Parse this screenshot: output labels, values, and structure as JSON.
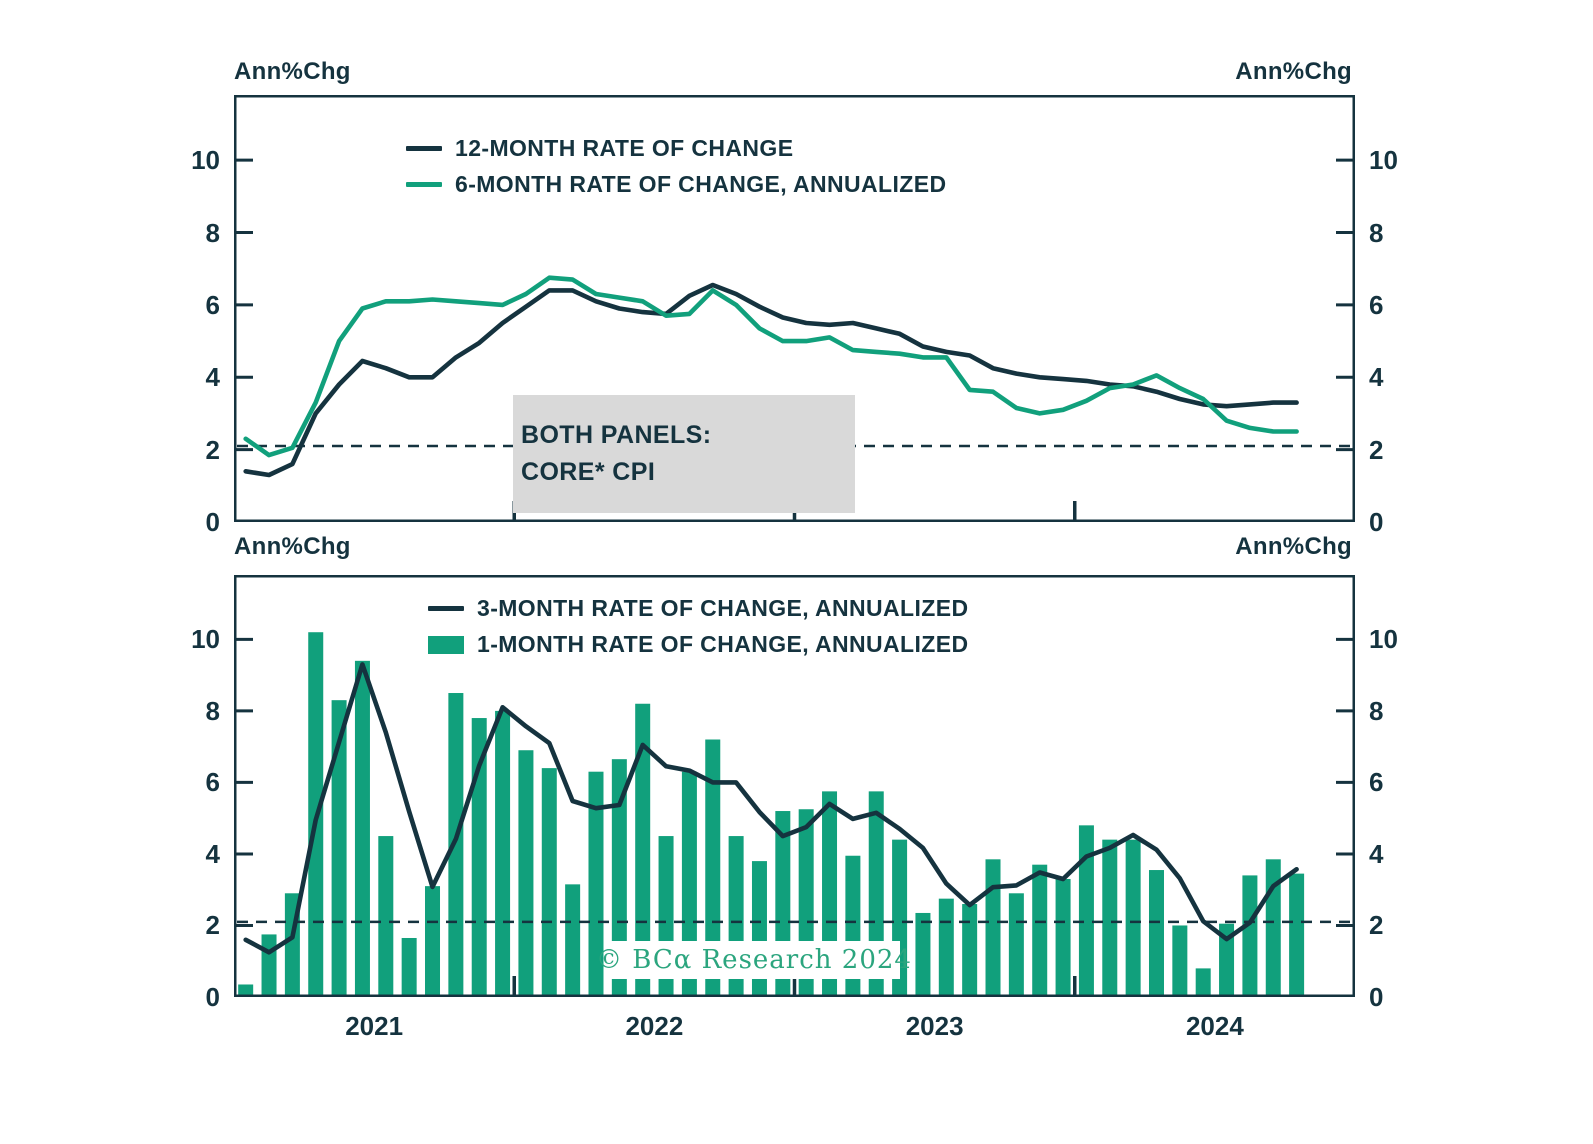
{
  "colors": {
    "axis": "#15333F",
    "dark": "#15333F",
    "green": "#11A07C",
    "gray_box": "#D9D9D9",
    "copyright_green": "#2BA57E",
    "background": "#FFFFFF"
  },
  "top_panel": {
    "ylabel_left": "Ann%Chg",
    "ylabel_right": "Ann%Chg"
  },
  "bottom_panel": {
    "ylabel_left": "Ann%Chg",
    "ylabel_right": "Ann%Chg"
  },
  "annotation_box": {
    "line1": "BOTH PANELS:",
    "line2": "CORE* CPI"
  },
  "copyright": {
    "text": "© BCα Research 2024"
  },
  "chart_data": [
    {
      "type": "line",
      "panel": "top",
      "x": [
        "2021-01",
        "2021-02",
        "2021-03",
        "2021-04",
        "2021-05",
        "2021-06",
        "2021-07",
        "2021-08",
        "2021-09",
        "2021-10",
        "2021-11",
        "2021-12",
        "2022-01",
        "2022-02",
        "2022-03",
        "2022-04",
        "2022-05",
        "2022-06",
        "2022-07",
        "2022-08",
        "2022-09",
        "2022-10",
        "2022-11",
        "2022-12",
        "2023-01",
        "2023-02",
        "2023-03",
        "2023-04",
        "2023-05",
        "2023-06",
        "2023-07",
        "2023-08",
        "2023-09",
        "2023-10",
        "2023-11",
        "2023-12",
        "2024-01",
        "2024-02",
        "2024-03",
        "2024-04",
        "2024-05",
        "2024-06",
        "2024-07",
        "2024-08",
        "2024-09",
        "2024-10"
      ],
      "xticks": [
        "2021",
        "2022",
        "2023",
        "2024"
      ],
      "ylabel": "Ann%Chg",
      "ylim": [
        0,
        11.8
      ],
      "yticks": [
        0,
        2,
        4,
        6,
        8,
        10
      ],
      "dashed_reference_line": 2.1,
      "grid": false,
      "legend_position": "top-left-inside",
      "series": [
        {
          "name": "12-MONTH RATE OF CHANGE",
          "type": "line",
          "color": "#15333F",
          "values": [
            1.4,
            1.3,
            1.6,
            3.0,
            3.8,
            4.45,
            4.25,
            4.0,
            4.0,
            4.55,
            4.95,
            5.5,
            5.95,
            6.4,
            6.4,
            6.1,
            5.9,
            5.8,
            5.75,
            6.25,
            6.55,
            6.3,
            5.95,
            5.65,
            5.5,
            5.45,
            5.5,
            5.35,
            5.2,
            4.85,
            4.7,
            4.6,
            4.25,
            4.1,
            4.0,
            3.95,
            3.9,
            3.8,
            3.75,
            3.6,
            3.4,
            3.25,
            3.2,
            3.25,
            3.3,
            3.3
          ]
        },
        {
          "name": "6-MONTH RATE OF CHANGE, ANNUALIZED",
          "type": "line",
          "color": "#11A07C",
          "values": [
            2.3,
            1.85,
            2.05,
            3.3,
            5.0,
            5.9,
            6.1,
            6.1,
            6.15,
            6.1,
            6.05,
            6.0,
            6.3,
            6.75,
            6.7,
            6.3,
            6.2,
            6.1,
            5.7,
            5.75,
            6.4,
            6.0,
            5.35,
            5.0,
            5.0,
            5.1,
            4.75,
            4.7,
            4.65,
            4.55,
            4.55,
            3.65,
            3.6,
            3.15,
            3.0,
            3.1,
            3.35,
            3.7,
            3.8,
            4.05,
            3.7,
            3.4,
            2.8,
            2.6,
            2.5,
            2.5
          ]
        }
      ]
    },
    {
      "type": "bar+line",
      "panel": "bottom",
      "x": [
        "2021-01",
        "2021-02",
        "2021-03",
        "2021-04",
        "2021-05",
        "2021-06",
        "2021-07",
        "2021-08",
        "2021-09",
        "2021-10",
        "2021-11",
        "2021-12",
        "2022-01",
        "2022-02",
        "2022-03",
        "2022-04",
        "2022-05",
        "2022-06",
        "2022-07",
        "2022-08",
        "2022-09",
        "2022-10",
        "2022-11",
        "2022-12",
        "2023-01",
        "2023-02",
        "2023-03",
        "2023-04",
        "2023-05",
        "2023-06",
        "2023-07",
        "2023-08",
        "2023-09",
        "2023-10",
        "2023-11",
        "2023-12",
        "2024-01",
        "2024-02",
        "2024-03",
        "2024-04",
        "2024-05",
        "2024-06",
        "2024-07",
        "2024-08",
        "2024-09",
        "2024-10"
      ],
      "xticks": [
        "2021",
        "2022",
        "2023",
        "2024"
      ],
      "ylabel": "Ann%Chg",
      "ylim": [
        0,
        11.8
      ],
      "yticks": [
        0,
        2,
        4,
        6,
        8,
        10
      ],
      "dashed_reference_line": 2.1,
      "grid": false,
      "legend_position": "top-center-inside",
      "series": [
        {
          "name": "1-MONTH RATE OF CHANGE, ANNUALIZED",
          "type": "bar",
          "color": "#11A07C",
          "values": [
            0.35,
            1.75,
            2.9,
            10.2,
            8.3,
            9.4,
            4.5,
            1.65,
            3.1,
            8.5,
            7.8,
            8.0,
            6.9,
            6.4,
            3.15,
            6.3,
            6.65,
            8.2,
            4.5,
            6.3,
            7.2,
            4.5,
            3.8,
            5.2,
            5.25,
            5.75,
            3.95,
            5.75,
            4.4,
            2.35,
            2.75,
            2.6,
            3.85,
            2.9,
            3.7,
            3.3,
            4.8,
            4.4,
            4.4,
            3.55,
            2.0,
            0.8,
            2.05,
            3.4,
            3.85,
            3.45
          ]
        },
        {
          "name": "3-MONTH RATE OF CHANGE, ANNUALIZED",
          "type": "line",
          "color": "#15333F",
          "values": [
            1.6,
            1.25,
            1.67,
            4.95,
            7.13,
            9.3,
            7.4,
            5.18,
            3.08,
            4.42,
            6.47,
            8.1,
            7.57,
            7.1,
            5.48,
            5.28,
            5.37,
            7.05,
            6.45,
            6.33,
            6.0,
            6.0,
            5.17,
            4.5,
            4.75,
            5.4,
            4.98,
            5.15,
            4.7,
            4.17,
            3.17,
            2.57,
            3.07,
            3.12,
            3.48,
            3.3,
            3.93,
            4.17,
            4.53,
            4.12,
            3.32,
            2.12,
            1.62,
            2.08,
            3.1,
            3.57
          ]
        }
      ]
    }
  ]
}
